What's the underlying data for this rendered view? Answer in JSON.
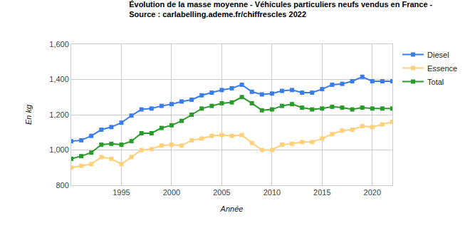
{
  "chart_data": {
    "type": "line",
    "title": "Évolution de la masse moyenne - Véhicules particuliers neufs vendus en France -\nSource : carlabelling.ademe.fr/chiffrescles 2022",
    "x_label": "Année",
    "y_label": "En kg",
    "x": [
      1990,
      1991,
      1992,
      1993,
      1994,
      1995,
      1996,
      1997,
      1998,
      1999,
      2000,
      2001,
      2002,
      2003,
      2004,
      2005,
      2006,
      2007,
      2008,
      2009,
      2010,
      2011,
      2012,
      2013,
      2014,
      2015,
      2016,
      2017,
      2018,
      2019,
      2020,
      2021,
      2022
    ],
    "series": [
      {
        "name": "Diesel",
        "color": "#3a7de8",
        "marker": "square",
        "values": [
          1050,
          1055,
          1080,
          1115,
          1130,
          1155,
          1195,
          1230,
          1235,
          1250,
          1260,
          1275,
          1285,
          1310,
          1325,
          1340,
          1350,
          1370,
          1330,
          1315,
          1320,
          1335,
          1340,
          1325,
          1325,
          1345,
          1370,
          1375,
          1390,
          1415,
          1390,
          1390,
          1390
        ]
      },
      {
        "name": "Essence",
        "color": "#ffcf7a",
        "marker": "square",
        "values": [
          900,
          910,
          920,
          960,
          950,
          920,
          960,
          1000,
          1005,
          1025,
          1030,
          1025,
          1055,
          1065,
          1080,
          1085,
          1080,
          1085,
          1040,
          1000,
          1000,
          1030,
          1035,
          1045,
          1045,
          1065,
          1090,
          1110,
          1115,
          1135,
          1130,
          1145,
          1160
        ]
      },
      {
        "name": "Total",
        "color": "#2a9a2a",
        "marker": "square",
        "values": [
          950,
          965,
          985,
          1030,
          1035,
          1030,
          1050,
          1095,
          1095,
          1125,
          1140,
          1165,
          1200,
          1235,
          1250,
          1265,
          1270,
          1300,
          1265,
          1225,
          1230,
          1250,
          1260,
          1240,
          1230,
          1235,
          1245,
          1240,
          1230,
          1240,
          1235,
          1235,
          1235
        ]
      }
    ],
    "xlim": [
      1990,
      2022
    ],
    "xticks": [
      1995,
      2000,
      2005,
      2010,
      2015,
      2020
    ],
    "ylim": [
      800,
      1600
    ],
    "yticks": [
      800,
      {
        "value": 1000,
        "label": "1,000"
      },
      {
        "value": 1200,
        "label": "1,200"
      },
      {
        "value": 1400,
        "label": "1,400"
      },
      {
        "value": 1600,
        "label": "1,600"
      }
    ],
    "grid": true,
    "legend": "top-right"
  }
}
